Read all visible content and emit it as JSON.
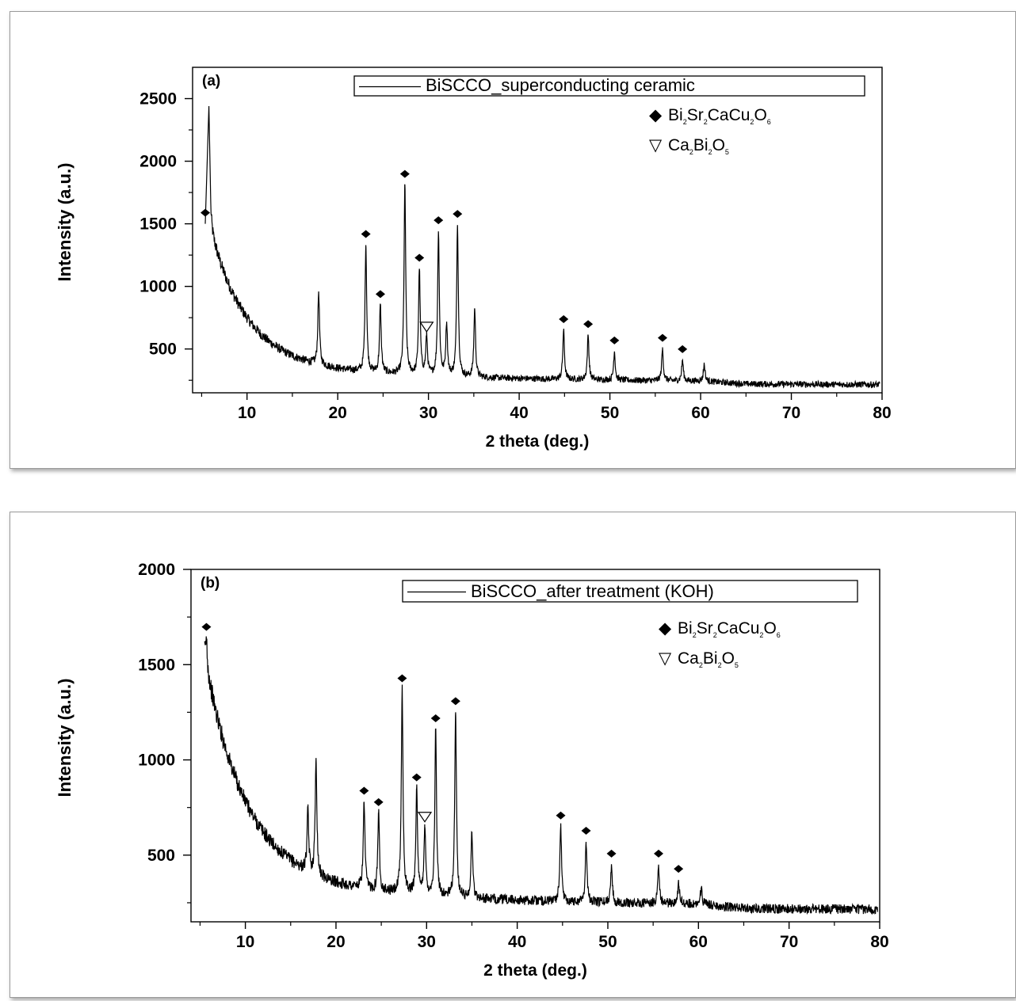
{
  "chart_data": [
    {
      "type": "line",
      "panel_label": "(a)",
      "xlabel": "2 theta (deg.)",
      "ylabel": "Intensity (a.u.)",
      "xlim": [
        4,
        80
      ],
      "ylim": [
        150,
        2750
      ],
      "xticks": [
        10,
        20,
        30,
        40,
        50,
        60,
        70,
        80
      ],
      "yticks": [
        500,
        1000,
        1500,
        2000,
        2500
      ],
      "legend": "BiSCCO_superconducting ceramic",
      "phase_legend": [
        {
          "marker": "◆",
          "parts": [
            "Bi",
            "2",
            "Sr",
            "2",
            "CaCu",
            "2",
            "O",
            "6"
          ]
        },
        {
          "marker": "▽",
          "parts": [
            "Ca",
            "2",
            "Bi",
            "2",
            "O",
            "5"
          ]
        }
      ],
      "baseline": {
        "floor": 230,
        "amp": 1050,
        "decay": 4.0,
        "start": 6.0
      },
      "peaks": [
        {
          "x": 5.4,
          "y": 1500,
          "marker": "diamond"
        },
        {
          "x": 5.8,
          "y": 2440,
          "marker": "none"
        },
        {
          "x": 17.9,
          "y": 960,
          "marker": "none"
        },
        {
          "x": 23.1,
          "y": 1330,
          "marker": "diamond"
        },
        {
          "x": 24.7,
          "y": 850,
          "marker": "diamond"
        },
        {
          "x": 27.4,
          "y": 1810,
          "marker": "diamond"
        },
        {
          "x": 29.0,
          "y": 1140,
          "marker": "diamond"
        },
        {
          "x": 29.8,
          "y": 600,
          "marker": "triangle"
        },
        {
          "x": 31.1,
          "y": 1440,
          "marker": "diamond"
        },
        {
          "x": 32.0,
          "y": 700,
          "marker": "none"
        },
        {
          "x": 33.2,
          "y": 1490,
          "marker": "diamond"
        },
        {
          "x": 35.1,
          "y": 820,
          "marker": "none"
        },
        {
          "x": 44.9,
          "y": 650,
          "marker": "diamond"
        },
        {
          "x": 47.6,
          "y": 610,
          "marker": "diamond"
        },
        {
          "x": 50.5,
          "y": 480,
          "marker": "diamond"
        },
        {
          "x": 55.8,
          "y": 500,
          "marker": "diamond"
        },
        {
          "x": 58.0,
          "y": 410,
          "marker": "diamond"
        },
        {
          "x": 60.4,
          "y": 380,
          "marker": "none"
        }
      ]
    },
    {
      "type": "line",
      "panel_label": "(b)",
      "xlabel": "2 theta (deg.)",
      "ylabel": "Intensity (a.u.)",
      "xlim": [
        4,
        80
      ],
      "ylim": [
        150,
        2000
      ],
      "xticks": [
        10,
        20,
        30,
        40,
        50,
        60,
        70,
        80
      ],
      "yticks": [
        500,
        1000,
        1500,
        2000
      ],
      "legend": "BiSCCO_after treatment (KOH)",
      "phase_legend": [
        {
          "marker": "◆",
          "parts": [
            "Bi",
            "2",
            "Sr",
            "2",
            "CaCu",
            "2",
            "O",
            "6"
          ]
        },
        {
          "marker": "▽",
          "parts": [
            "Ca",
            "2",
            "Bi",
            "2",
            "O",
            "5"
          ]
        }
      ],
      "baseline": {
        "floor": 230,
        "amp": 1150,
        "decay": 4.5,
        "start": 5.5
      },
      "peaks": [
        {
          "x": 5.7,
          "y": 1640,
          "marker": "diamond"
        },
        {
          "x": 16.9,
          "y": 730,
          "marker": "none"
        },
        {
          "x": 17.8,
          "y": 1010,
          "marker": "none"
        },
        {
          "x": 23.1,
          "y": 780,
          "marker": "diamond"
        },
        {
          "x": 24.7,
          "y": 720,
          "marker": "diamond"
        },
        {
          "x": 27.3,
          "y": 1370,
          "marker": "diamond"
        },
        {
          "x": 28.9,
          "y": 850,
          "marker": "diamond"
        },
        {
          "x": 29.8,
          "y": 650,
          "marker": "triangle"
        },
        {
          "x": 31.0,
          "y": 1160,
          "marker": "diamond"
        },
        {
          "x": 33.2,
          "y": 1250,
          "marker": "diamond"
        },
        {
          "x": 35.0,
          "y": 620,
          "marker": "none"
        },
        {
          "x": 44.8,
          "y": 650,
          "marker": "diamond"
        },
        {
          "x": 47.6,
          "y": 570,
          "marker": "diamond"
        },
        {
          "x": 50.4,
          "y": 450,
          "marker": "diamond"
        },
        {
          "x": 55.6,
          "y": 450,
          "marker": "diamond"
        },
        {
          "x": 57.8,
          "y": 370,
          "marker": "diamond"
        },
        {
          "x": 60.3,
          "y": 330,
          "marker": "none"
        }
      ]
    }
  ]
}
